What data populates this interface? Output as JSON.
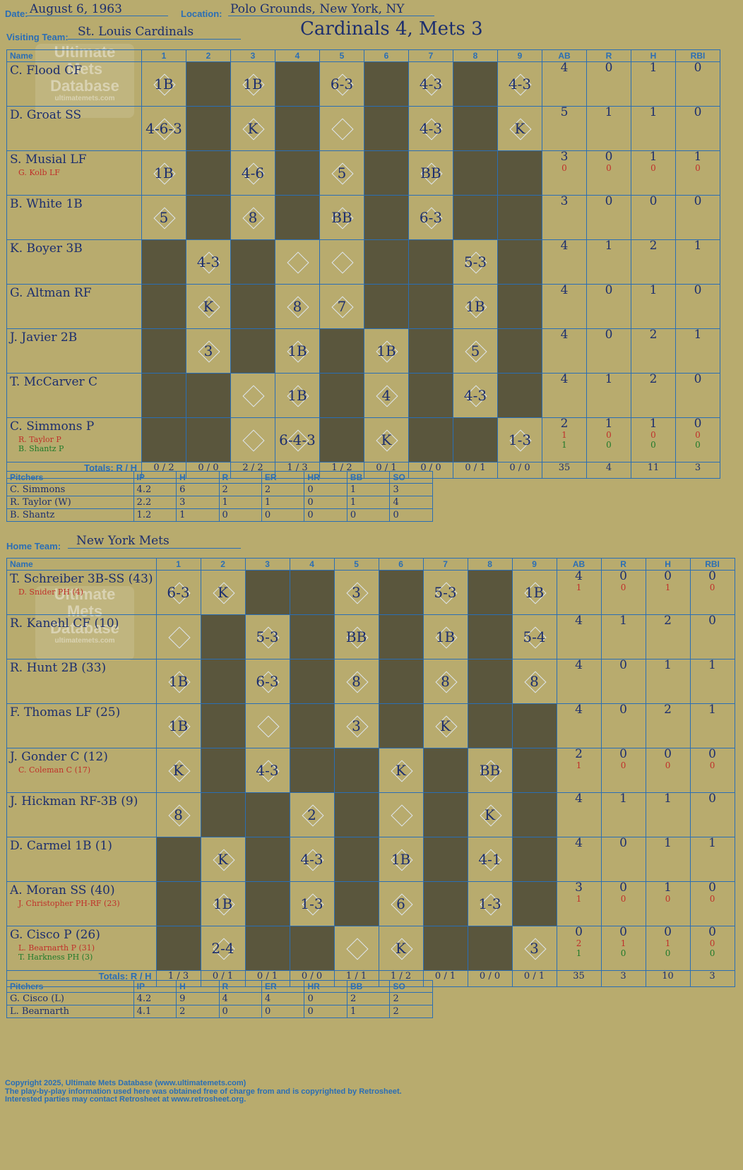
{
  "header": {
    "date_label": "Date:",
    "date": "August 6, 1963",
    "location_label": "Location:",
    "location": "Polo Grounds, New York, NY",
    "visiting_label": "Visiting Team:",
    "visiting_team": "St. Louis Cardinals",
    "home_label": "Home Team:",
    "home_team": "New York Mets",
    "headline": "Cardinals 4, Mets 3"
  },
  "watermark": {
    "line1": "Ultimate",
    "line2": "Mets",
    "line3": "Database",
    "site": "ultimatemets.com"
  },
  "columns": {
    "name": "Name",
    "innings": [
      "1",
      "2",
      "3",
      "4",
      "5",
      "6",
      "7",
      "8",
      "9"
    ],
    "stats": [
      "AB",
      "R",
      "H",
      "RBI"
    ],
    "totals": "Totals:",
    "r": "R",
    "h": "H"
  },
  "visitors": [
    {
      "name": "C. Flood CF",
      "subs": [],
      "stats": [
        [
          "4"
        ],
        [
          "0"
        ],
        [
          "1"
        ],
        [
          "0"
        ]
      ],
      "cells": [
        "1B",
        "",
        "1B",
        "",
        "6-3",
        "",
        "4-3",
        "",
        "4-3"
      ],
      "dark": [
        2,
        4,
        6,
        8
      ]
    },
    {
      "name": "D. Groat SS",
      "subs": [],
      "stats": [
        [
          "5"
        ],
        [
          "1"
        ],
        [
          "1"
        ],
        [
          "0"
        ]
      ],
      "cells": [
        "4-6-3",
        "",
        "K",
        "",
        "",
        "",
        "4-3",
        "",
        "K"
      ],
      "dark": [
        2,
        4,
        6,
        8
      ]
    },
    {
      "name": "S. Musial LF",
      "subs": [
        {
          "name": "G. Kolb LF",
          "color": "r"
        }
      ],
      "stats": [
        [
          "3",
          "0"
        ],
        [
          "0",
          "0"
        ],
        [
          "1",
          "0"
        ],
        [
          "1",
          "0"
        ]
      ],
      "cells": [
        "1B",
        "",
        "4-6",
        "",
        "5",
        "",
        "BB",
        "",
        ""
      ],
      "dark": [
        2,
        4,
        6,
        8,
        9
      ]
    },
    {
      "name": "B. White 1B",
      "subs": [],
      "stats": [
        [
          "3"
        ],
        [
          "0"
        ],
        [
          "0"
        ],
        [
          "0"
        ]
      ],
      "cells": [
        "5",
        "",
        "8",
        "",
        "BB",
        "",
        "6-3",
        "",
        ""
      ],
      "dark": [
        2,
        4,
        6,
        8,
        9
      ]
    },
    {
      "name": "K. Boyer 3B",
      "subs": [],
      "stats": [
        [
          "4"
        ],
        [
          "1"
        ],
        [
          "2"
        ],
        [
          "1"
        ]
      ],
      "cells": [
        "",
        "4-3",
        "",
        "",
        "",
        "",
        "",
        "5-3",
        ""
      ],
      "dark": [
        1,
        3,
        6,
        7,
        9
      ]
    },
    {
      "name": "G. Altman RF",
      "subs": [],
      "stats": [
        [
          "4"
        ],
        [
          "0"
        ],
        [
          "1"
        ],
        [
          "0"
        ]
      ],
      "cells": [
        "",
        "K",
        "",
        "8",
        "7",
        "",
        "",
        "1B",
        ""
      ],
      "dark": [
        1,
        3,
        6,
        7,
        9
      ]
    },
    {
      "name": "J. Javier 2B",
      "subs": [],
      "stats": [
        [
          "4"
        ],
        [
          "0"
        ],
        [
          "2"
        ],
        [
          "1"
        ]
      ],
      "cells": [
        "",
        "3",
        "",
        "1B",
        "",
        "1B",
        "",
        "5",
        ""
      ],
      "dark": [
        1,
        3,
        5,
        7,
        9
      ]
    },
    {
      "name": "T. McCarver C",
      "subs": [],
      "stats": [
        [
          "4"
        ],
        [
          "1"
        ],
        [
          "2"
        ],
        [
          "0"
        ]
      ],
      "cells": [
        "",
        "",
        "",
        "1B",
        "",
        "4",
        "",
        "4-3",
        ""
      ],
      "dark": [
        1,
        2,
        5,
        7,
        9
      ]
    },
    {
      "name": "C. Simmons P",
      "subs": [
        {
          "name": "R. Taylor P",
          "color": "r"
        },
        {
          "name": "B. Shantz P",
          "color": "g"
        }
      ],
      "stats": [
        [
          "2",
          "1",
          "1"
        ],
        [
          "1",
          "0",
          "0"
        ],
        [
          "1",
          "0",
          "0"
        ],
        [
          "0",
          "0",
          "0"
        ]
      ],
      "cells": [
        "",
        "",
        "",
        "6-4-3",
        "",
        "K",
        "",
        "",
        "1-3"
      ],
      "dark": [
        1,
        2,
        5,
        7,
        8
      ]
    }
  ],
  "visitor_totals": {
    "innings": [
      [
        "0",
        "2"
      ],
      [
        "0",
        "0"
      ],
      [
        "2",
        "2"
      ],
      [
        "1",
        "3"
      ],
      [
        "1",
        "2"
      ],
      [
        "0",
        "1"
      ],
      [
        "0",
        "0"
      ],
      [
        "0",
        "1"
      ],
      [
        "0",
        "0"
      ]
    ],
    "ab": "35",
    "r": "4",
    "h": "11",
    "rbi": "3"
  },
  "visitor_pitchers": {
    "headers": [
      "Pitchers",
      "IP",
      "H",
      "R",
      "ER",
      "HR",
      "BB",
      "SO"
    ],
    "rows": [
      [
        "C. Simmons",
        "4.2",
        "6",
        "2",
        "2",
        "0",
        "1",
        "3"
      ],
      [
        "R. Taylor (W)",
        "2.2",
        "3",
        "1",
        "1",
        "0",
        "1",
        "4"
      ],
      [
        "B. Shantz",
        "1.2",
        "1",
        "0",
        "0",
        "0",
        "0",
        "0"
      ]
    ]
  },
  "home": [
    {
      "name": "T. Schreiber 3B-SS (43)",
      "subs": [
        {
          "name": "D. Snider PH (4)",
          "color": "r"
        }
      ],
      "stats": [
        [
          "4",
          "1"
        ],
        [
          "0",
          "0"
        ],
        [
          "0",
          "1"
        ],
        [
          "0",
          "0"
        ]
      ],
      "cells": [
        "6-3",
        "K",
        "",
        "",
        "3",
        "",
        "5-3",
        "",
        "1B"
      ],
      "dark": [
        3,
        4,
        6,
        8
      ]
    },
    {
      "name": "R. Kanehl CF (10)",
      "subs": [],
      "stats": [
        [
          "4"
        ],
        [
          "1"
        ],
        [
          "2"
        ],
        [
          "0"
        ]
      ],
      "cells": [
        "",
        "",
        "5-3",
        "",
        "BB",
        "",
        "1B",
        "",
        "5-4"
      ],
      "dark": [
        2,
        4,
        6,
        8
      ]
    },
    {
      "name": "R. Hunt 2B (33)",
      "subs": [],
      "stats": [
        [
          "4"
        ],
        [
          "0"
        ],
        [
          "1"
        ],
        [
          "1"
        ]
      ],
      "cells": [
        "1B",
        "",
        "6-3",
        "",
        "8",
        "",
        "8",
        "",
        "8"
      ],
      "dark": [
        2,
        4,
        6,
        8
      ]
    },
    {
      "name": "F. Thomas LF (25)",
      "subs": [],
      "stats": [
        [
          "4"
        ],
        [
          "0"
        ],
        [
          "2"
        ],
        [
          "1"
        ]
      ],
      "cells": [
        "1B",
        "",
        "",
        "",
        "3",
        "",
        "K",
        "",
        ""
      ],
      "dark": [
        2,
        4,
        6,
        8,
        9
      ]
    },
    {
      "name": "J. Gonder C (12)",
      "subs": [
        {
          "name": "C. Coleman C (17)",
          "color": "r"
        }
      ],
      "stats": [
        [
          "2",
          "1"
        ],
        [
          "0",
          "0"
        ],
        [
          "0",
          "0"
        ],
        [
          "0",
          "0"
        ]
      ],
      "cells": [
        "K",
        "",
        "4-3",
        "",
        "",
        "K",
        "",
        "BB",
        ""
      ],
      "dark": [
        2,
        4,
        5,
        7,
        9
      ]
    },
    {
      "name": "J. Hickman RF-3B (9)",
      "subs": [],
      "stats": [
        [
          "4"
        ],
        [
          "1"
        ],
        [
          "1"
        ],
        [
          "0"
        ]
      ],
      "cells": [
        "8",
        "",
        "",
        "2",
        "",
        "",
        "",
        "K",
        ""
      ],
      "dark": [
        2,
        3,
        5,
        7,
        9
      ]
    },
    {
      "name": "D. Carmel 1B (1)",
      "subs": [],
      "stats": [
        [
          "4"
        ],
        [
          "0"
        ],
        [
          "1"
        ],
        [
          "1"
        ]
      ],
      "cells": [
        "",
        "K",
        "",
        "4-3",
        "",
        "1B",
        "",
        "4-1",
        ""
      ],
      "dark": [
        1,
        3,
        5,
        7,
        9
      ]
    },
    {
      "name": "A. Moran SS (40)",
      "subs": [
        {
          "name": "J. Christopher PH-RF (23)",
          "color": "r"
        }
      ],
      "stats": [
        [
          "3",
          "1"
        ],
        [
          "0",
          "0"
        ],
        [
          "1",
          "0"
        ],
        [
          "0",
          "0"
        ]
      ],
      "cells": [
        "",
        "1B",
        "",
        "1-3",
        "",
        "6",
        "",
        "1-3",
        ""
      ],
      "dark": [
        1,
        3,
        5,
        7,
        9
      ]
    },
    {
      "name": "G. Cisco P (26)",
      "subs": [
        {
          "name": "L. Bearnarth P (31)",
          "color": "r"
        },
        {
          "name": "T. Harkness PH (3)",
          "color": "g"
        }
      ],
      "stats": [
        [
          "0",
          "2",
          "1"
        ],
        [
          "0",
          "1",
          "0"
        ],
        [
          "0",
          "1",
          "0"
        ],
        [
          "0",
          "0",
          "0"
        ]
      ],
      "cells": [
        "",
        "2-4",
        "",
        "",
        "",
        "K",
        "",
        "",
        "3"
      ],
      "dark": [
        1,
        3,
        4,
        7,
        8
      ]
    }
  ],
  "home_totals": {
    "innings": [
      [
        "1",
        "3"
      ],
      [
        "0",
        "1"
      ],
      [
        "0",
        "1"
      ],
      [
        "0",
        "0"
      ],
      [
        "1",
        "1"
      ],
      [
        "1",
        "2"
      ],
      [
        "0",
        "1"
      ],
      [
        "0",
        "0"
      ],
      [
        "0",
        "1"
      ]
    ],
    "ab": "35",
    "r": "3",
    "h": "10",
    "rbi": "3"
  },
  "home_pitchers": {
    "headers": [
      "Pitchers",
      "IP",
      "H",
      "R",
      "ER",
      "HR",
      "BB",
      "SO"
    ],
    "rows": [
      [
        "G. Cisco (L)",
        "4.2",
        "9",
        "4",
        "4",
        "0",
        "2",
        "2"
      ],
      [
        "L. Bearnarth",
        "4.1",
        "2",
        "0",
        "0",
        "0",
        "1",
        "2"
      ]
    ]
  },
  "footer": {
    "line1": "Copyright 2025, Ultimate Mets Database (www.ultimatemets.com)",
    "line2": "The play-by-play information used here was obtained free of charge from and is copyrighted by Retrosheet.",
    "line3": "Interested parties may contact Retrosheet at www.retrosheet.org."
  }
}
